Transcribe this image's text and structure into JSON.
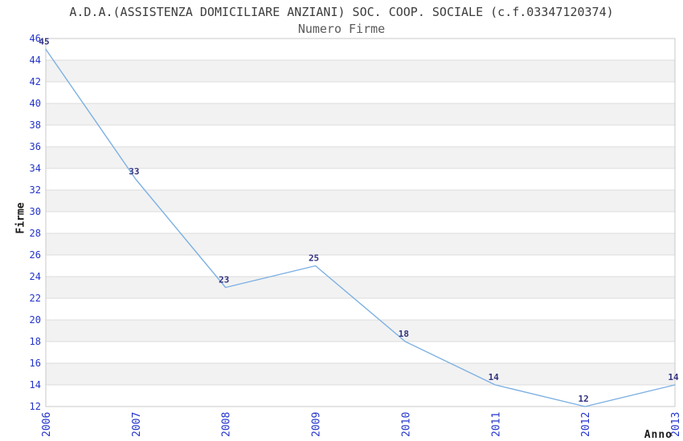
{
  "chart_data": {
    "type": "line",
    "title": "A.D.A.(ASSISTENZA DOMICILIARE ANZIANI) SOC. COOP. SOCIALE (c.f.03347120374)",
    "subtitle": "Numero Firme",
    "xlabel": "Anno",
    "ylabel": "Firme",
    "categories": [
      "2006",
      "2007",
      "2008",
      "2009",
      "2010",
      "2011",
      "2012",
      "2013"
    ],
    "values": [
      45,
      33,
      23,
      25,
      18,
      14,
      12,
      14
    ],
    "series_name": "Numero Firme",
    "ylim": [
      12,
      46
    ],
    "ytick_step": 2,
    "legend": "none",
    "grid": "horizontal gridlines every 2 units with alternating light-gray bands",
    "point_labels_visible": true,
    "colors": {
      "line": "#7db0e3",
      "axis_tick_label": "#2233cc",
      "point_label": "#333380",
      "band_fill": "#f2f2f2",
      "gridline": "#dcdcdc",
      "plot_border": "#c8c8c8",
      "title_text": "#3c3c3c",
      "subtitle_text": "#5a5a5a",
      "axis_title_text": "#1a1a1a",
      "background": "#ffffff"
    }
  }
}
